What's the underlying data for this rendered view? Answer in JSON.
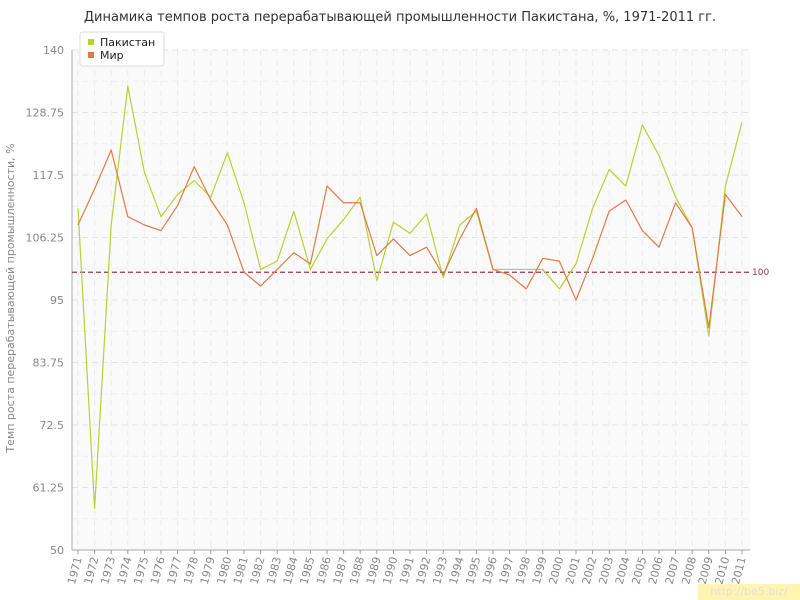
{
  "chart_data": {
    "type": "line",
    "title": "Динамика темпов роста перерабатывающей промышленности Пакистана, %, 1971-2011 гг.",
    "xlabel": "",
    "ylabel": "Темп роста перерабатывающей промышленности, %",
    "ylim": [
      50,
      140
    ],
    "yticks": [
      "50",
      "61.25",
      "72.5",
      "83.75",
      "95",
      "106.25",
      "117.5",
      "128.75",
      "140"
    ],
    "categories": [
      "1971",
      "1972",
      "1973",
      "1974",
      "1975",
      "1976",
      "1977",
      "1978",
      "1979",
      "1980",
      "1981",
      "1982",
      "1983",
      "1984",
      "1985",
      "1986",
      "1987",
      "1988",
      "1989",
      "1990",
      "1991",
      "1992",
      "1993",
      "1994",
      "1995",
      "1996",
      "1997",
      "1998",
      "1999",
      "2000",
      "2001",
      "2002",
      "2003",
      "2004",
      "2005",
      "2006",
      "2007",
      "2008",
      "2009",
      "2010",
      "2011"
    ],
    "series": [
      {
        "name": "Пакистан",
        "color": "#b5d334",
        "values": [
          111.5,
          57.5,
          108.5,
          133.5,
          118,
          110,
          114,
          116.5,
          113.5,
          121.5,
          112.5,
          100.5,
          102,
          111,
          100.5,
          106,
          109.5,
          113.5,
          98.5,
          109,
          107,
          110.5,
          99,
          108.5,
          111,
          100.5,
          100.5,
          100.5,
          100.5,
          97,
          101.5,
          111.5,
          118.5,
          115.5,
          126.5,
          121,
          113.5,
          108,
          88.5,
          115.5,
          127
        ]
      },
      {
        "name": "Мир",
        "color": "#e07b49",
        "values": [
          108.5,
          115,
          122,
          110,
          108.5,
          107.5,
          112,
          119,
          113,
          108.5,
          100,
          97.5,
          100.5,
          103.5,
          101.5,
          115.5,
          112.5,
          112.5,
          103,
          106,
          103,
          104.5,
          99.5,
          106,
          111.5,
          100.5,
          99.5,
          97,
          102.5,
          102,
          95,
          102.5,
          111,
          113,
          107.5,
          104.5,
          112.5,
          108,
          90,
          114,
          110
        ]
      }
    ],
    "reference_line": {
      "value": 100,
      "label": "100",
      "color": "#a0334a",
      "style": "dashed"
    },
    "grid": true,
    "legend_position": "top-left"
  },
  "watermark": "http://be5.biz/"
}
